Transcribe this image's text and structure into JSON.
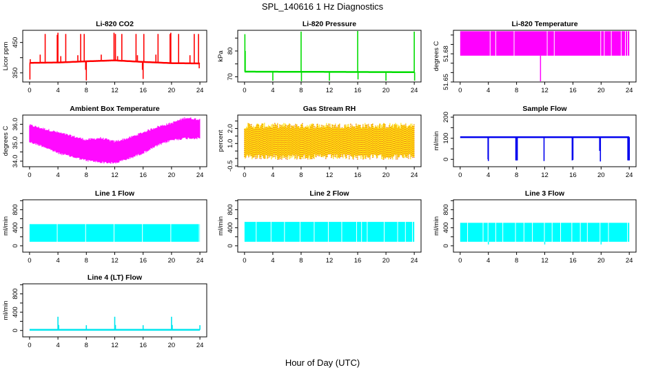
{
  "figure": {
    "title": "SPL_140616  1 Hz Diagnostics",
    "xlabel": "Hour of Day (UTC)"
  },
  "chart_data": [
    {
      "type": "line",
      "title": "Li-820 CO2",
      "ylabel": "Licor ppm",
      "color": "#ff0000",
      "xlim": [
        0,
        24
      ],
      "ylim": [
        320,
        490
      ],
      "x_ticks": [
        0,
        4,
        8,
        12,
        16,
        20,
        24
      ],
      "y_ticks": [
        350,
        400,
        450
      ],
      "y_tick_labels": [
        "350",
        "",
        "450"
      ],
      "style": "baseline-with-spikes",
      "baseline": [
        [
          0,
          383
        ],
        [
          4,
          384
        ],
        [
          8,
          388
        ],
        [
          12,
          391
        ],
        [
          16,
          386
        ],
        [
          20,
          382
        ],
        [
          24,
          381
        ]
      ],
      "spikes": [
        [
          0.05,
          328
        ],
        [
          0.1,
          395
        ],
        [
          1.5,
          410
        ],
        [
          2.2,
          478
        ],
        [
          3.9,
          475
        ],
        [
          4.0,
          482
        ],
        [
          4.4,
          405
        ],
        [
          5.1,
          478
        ],
        [
          6.8,
          408
        ],
        [
          7.2,
          478
        ],
        [
          7.7,
          478
        ],
        [
          7.9,
          360
        ],
        [
          8.0,
          325
        ],
        [
          10.1,
          410
        ],
        [
          11.9,
          482
        ],
        [
          12.1,
          478
        ],
        [
          12.4,
          405
        ],
        [
          13.0,
          478
        ],
        [
          15.0,
          478
        ],
        [
          15.2,
          408
        ],
        [
          15.9,
          360
        ],
        [
          16.0,
          330
        ],
        [
          16.1,
          478
        ],
        [
          17.8,
          410
        ],
        [
          18.1,
          478
        ],
        [
          19.8,
          478
        ],
        [
          19.9,
          482
        ],
        [
          21.0,
          478
        ],
        [
          22.6,
          408
        ],
        [
          23.2,
          478
        ],
        [
          23.8,
          478
        ],
        [
          23.9,
          365
        ]
      ]
    },
    {
      "type": "line",
      "title": "Li-820 Pressure",
      "ylabel": "kPa",
      "color": "#00dd00",
      "xlim": [
        0,
        24
      ],
      "ylim": [
        68,
        88
      ],
      "x_ticks": [
        0,
        4,
        8,
        12,
        16,
        20,
        24
      ],
      "y_ticks": [
        70,
        75,
        80,
        85
      ],
      "y_tick_labels": [
        "70",
        "",
        "80",
        ""
      ],
      "style": "baseline-with-spikes",
      "baseline": [
        [
          0,
          72
        ],
        [
          24,
          71.8
        ]
      ],
      "spikes": [
        [
          0.05,
          86.5
        ],
        [
          0.1,
          80
        ],
        [
          4.0,
          68.5
        ],
        [
          8.0,
          87.5
        ],
        [
          8.05,
          68.3
        ],
        [
          12.0,
          68.5
        ],
        [
          16.0,
          88
        ],
        [
          16.05,
          69
        ],
        [
          20.0,
          68.5
        ],
        [
          24.0,
          87.5
        ],
        [
          24.05,
          68.5
        ]
      ]
    },
    {
      "type": "area",
      "title": "Li-820 Temperature",
      "ylabel": "degrees C",
      "color": "#ff00ff",
      "xlim": [
        0,
        24
      ],
      "ylim": [
        51.645,
        51.7
      ],
      "x_ticks": [
        0,
        4,
        8,
        12,
        16,
        20,
        24
      ],
      "y_ticks": [
        51.645,
        51.655,
        51.665,
        51.675,
        51.685,
        51.695
      ],
      "y_tick_labels": [
        "51.65",
        "",
        "",
        "51.68",
        "",
        ""
      ],
      "style": "band",
      "band": [
        51.673,
        51.699
      ],
      "gaps": [
        4.2,
        5.0,
        7.6,
        12.3,
        13.3,
        19.9,
        20.4,
        21.4,
        22.8,
        23.4,
        23.7
      ],
      "spikes": [
        [
          11.4,
          51.645
        ]
      ]
    },
    {
      "type": "area",
      "title": "Ambient Box Temperature",
      "ylabel": "degrees C",
      "color": "#ff00ff",
      "xlim": [
        0,
        24
      ],
      "ylim": [
        33.7,
        36.5
      ],
      "x_ticks": [
        0,
        4,
        8,
        12,
        16,
        20,
        24
      ],
      "y_ticks": [
        34.0,
        34.5,
        35.0,
        35.5,
        36.0
      ],
      "y_tick_labels": [
        "34.0",
        "",
        "35.0",
        "",
        "36.0"
      ],
      "style": "noisy-band",
      "lower": [
        [
          0,
          35.1
        ],
        [
          2,
          34.85
        ],
        [
          4,
          34.5
        ],
        [
          6,
          34.3
        ],
        [
          8,
          34.1
        ],
        [
          10,
          34.0
        ],
        [
          12,
          33.95
        ],
        [
          14,
          34.2
        ],
        [
          16,
          34.5
        ],
        [
          18,
          34.9
        ],
        [
          20,
          35.2
        ],
        [
          22,
          35.3
        ],
        [
          24,
          35.3
        ]
      ],
      "upper": [
        [
          0,
          35.9
        ],
        [
          2,
          35.7
        ],
        [
          4,
          35.5
        ],
        [
          6,
          35.3
        ],
        [
          8,
          35.1
        ],
        [
          10,
          35.2
        ],
        [
          12,
          35.0
        ],
        [
          14,
          35.2
        ],
        [
          16,
          35.5
        ],
        [
          18,
          35.8
        ],
        [
          20,
          36.0
        ],
        [
          22,
          36.3
        ],
        [
          24,
          36.2
        ]
      ]
    },
    {
      "type": "area",
      "title": "Gas Stream RH",
      "ylabel": "percent",
      "colors": [
        "#ffdd00",
        "#dd2222"
      ],
      "xlim": [
        0,
        24
      ],
      "ylim": [
        -0.55,
        2.9
      ],
      "x_ticks": [
        0,
        4,
        8,
        12,
        16,
        20,
        24
      ],
      "y_ticks": [
        -0.5,
        0.0,
        0.5,
        1.0,
        1.5,
        2.0,
        2.5
      ],
      "y_tick_labels": [
        "-0.5",
        "",
        "",
        "1.0",
        "",
        "2.0",
        ""
      ],
      "style": "noisy-band",
      "lower": [
        [
          0,
          0.3
        ],
        [
          24,
          0.3
        ]
      ],
      "upper": [
        [
          0,
          2.0
        ],
        [
          24,
          2.0
        ]
      ],
      "noise": 0.55
    },
    {
      "type": "line",
      "title": "Sample Flow",
      "ylabel": "ml/min",
      "color": "#0000ee",
      "xlim": [
        0,
        24
      ],
      "ylim": [
        -35,
        210
      ],
      "x_ticks": [
        0,
        4,
        8,
        12,
        16,
        20,
        24
      ],
      "y_ticks": [
        0,
        50,
        100,
        150,
        200
      ],
      "y_tick_labels": [
        "0",
        "",
        "100",
        "",
        "200"
      ],
      "style": "baseline-with-spikes",
      "baseline": [
        [
          0,
          105
        ],
        [
          24,
          105
        ]
      ],
      "spikes": [
        [
          3.95,
          0
        ],
        [
          4.0,
          -8
        ],
        [
          7.9,
          -5
        ],
        [
          8.0,
          -5
        ],
        [
          8.1,
          -5
        ],
        [
          11.9,
          -8
        ],
        [
          15.9,
          -5
        ],
        [
          16.0,
          -3
        ],
        [
          19.8,
          40
        ],
        [
          19.9,
          -10
        ],
        [
          23.8,
          -5
        ],
        [
          23.9,
          -5
        ],
        [
          24.0,
          -5
        ]
      ]
    },
    {
      "type": "area",
      "title": "Line 1 Flow",
      "ylabel": "ml/min",
      "color": "#00ffff",
      "xlim": [
        0,
        24
      ],
      "ylim": [
        -140,
        1020
      ],
      "x_ticks": [
        0,
        4,
        8,
        12,
        16,
        20,
        24
      ],
      "y_ticks": [
        0,
        200,
        400,
        600,
        800,
        1000
      ],
      "y_tick_labels": [
        "0",
        "",
        "400",
        "",
        "800",
        ""
      ],
      "style": "band",
      "band": [
        90,
        480
      ],
      "gaps": [
        3.85,
        7.85,
        11.85,
        15.85,
        19.85,
        23.85
      ]
    },
    {
      "type": "area",
      "title": "Line 2 Flow",
      "ylabel": "ml/min",
      "color": "#00ffff",
      "xlim": [
        0,
        24
      ],
      "ylim": [
        -140,
        1020
      ],
      "x_ticks": [
        0,
        4,
        8,
        12,
        16,
        20,
        24
      ],
      "y_ticks": [
        0,
        200,
        400,
        600,
        800,
        1000
      ],
      "y_tick_labels": [
        "0",
        "",
        "400",
        "",
        "800",
        ""
      ],
      "style": "band",
      "band": [
        90,
        530
      ],
      "gaps": [
        1.6,
        3.7,
        5.6,
        7.8,
        9.8,
        11.8,
        13.7,
        15.8,
        16.5,
        17.3,
        19.7,
        21.6,
        22.7,
        23.7
      ]
    },
    {
      "type": "area",
      "title": "Line 3 Flow",
      "ylabel": "ml/min",
      "color": "#00ffff",
      "xlim": [
        0,
        24
      ],
      "ylim": [
        -140,
        1020
      ],
      "x_ticks": [
        0,
        4,
        8,
        12,
        16,
        20,
        24
      ],
      "y_ticks": [
        0,
        200,
        400,
        600,
        800,
        1000
      ],
      "y_tick_labels": [
        "0",
        "",
        "400",
        "",
        "800",
        ""
      ],
      "style": "band",
      "band": [
        90,
        510
      ],
      "gaps": [
        1.0,
        3.2,
        3.9,
        5.0,
        6.0,
        7.8,
        9.0,
        10.2,
        11.9,
        13.0,
        14.2,
        15.8,
        17.0,
        18.0,
        19.8,
        21.0,
        23.7
      ],
      "spikes": [
        [
          4.0,
          30
        ],
        [
          12.0,
          30
        ],
        [
          20.0,
          30
        ]
      ]
    },
    {
      "type": "line",
      "title": "Line 4 (LT) Flow",
      "ylabel": "ml/min",
      "color": "#00e5ee",
      "xlim": [
        0,
        24
      ],
      "ylim": [
        -140,
        1020
      ],
      "x_ticks": [
        0,
        4,
        8,
        12,
        16,
        20,
        24
      ],
      "y_ticks": [
        0,
        200,
        400,
        600,
        800,
        1000
      ],
      "y_tick_labels": [
        "0",
        "",
        "400",
        "",
        "800",
        ""
      ],
      "style": "baseline-with-spikes",
      "baseline": [
        [
          0,
          15
        ],
        [
          24,
          15
        ]
      ],
      "spikes": [
        [
          4.0,
          300
        ],
        [
          4.1,
          120
        ],
        [
          8.0,
          115
        ],
        [
          12.0,
          300
        ],
        [
          12.1,
          120
        ],
        [
          16.0,
          115
        ],
        [
          20.0,
          300
        ],
        [
          20.1,
          120
        ],
        [
          24.0,
          115
        ]
      ]
    }
  ]
}
